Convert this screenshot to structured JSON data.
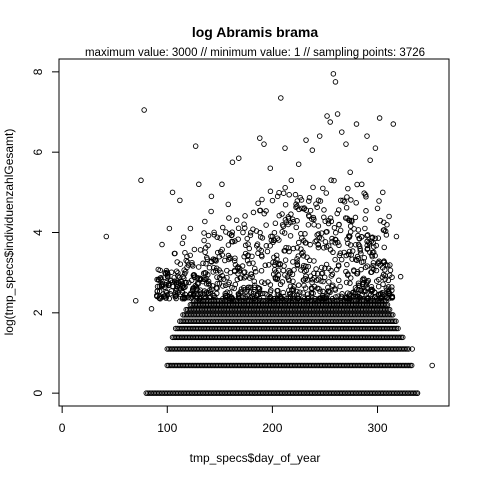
{
  "chart_data": {
    "type": "scatter",
    "title": "log Abramis brama",
    "subtitle": "maximum value: 3000  //  minimum value: 1  // sampling points: 3726",
    "xlabel": "tmp_specs$day_of_year",
    "ylabel": "log(tmp_specs$individuenzahlGesamt)",
    "xlim": [
      -3,
      368
    ],
    "ylim": [
      -0.32,
      8.32
    ],
    "xticks": [
      0,
      100,
      200,
      300
    ],
    "xtick_labels": [
      "0",
      "100",
      "200",
      "300"
    ],
    "yticks": [
      0,
      2,
      4,
      6,
      8
    ],
    "ytick_labels": [
      "0",
      "2",
      "4",
      "6",
      "8"
    ],
    "grid": false,
    "legend": "none",
    "point_style": "open-circle",
    "baseline_rows": [
      {
        "y": 0,
        "x_from": 80,
        "x_to": 338
      },
      {
        "y": 0.69,
        "x_from": 100,
        "x_to": 333
      },
      {
        "y": 1.1,
        "x_from": 100,
        "x_to": 330
      },
      {
        "y": 1.39,
        "x_from": 105,
        "x_to": 325
      },
      {
        "y": 1.61,
        "x_from": 108,
        "x_to": 320
      },
      {
        "y": 1.79,
        "x_from": 112,
        "x_to": 318
      },
      {
        "y": 1.95,
        "x_from": 115,
        "x_to": 315
      },
      {
        "y": 2.08,
        "x_from": 118,
        "x_to": 312
      },
      {
        "y": 2.2,
        "x_from": 122,
        "x_to": 310
      },
      {
        "y": 2.3,
        "x_from": 125,
        "x_to": 308
      }
    ],
    "points": [
      {
        "x": 42,
        "y": 3.9
      },
      {
        "x": 70,
        "y": 2.3
      },
      {
        "x": 75,
        "y": 5.3
      },
      {
        "x": 78,
        "y": 7.05
      },
      {
        "x": 85,
        "y": 2.1
      },
      {
        "x": 95,
        "y": 3.7
      },
      {
        "x": 102,
        "y": 4.1
      },
      {
        "x": 105,
        "y": 5.0
      },
      {
        "x": 110,
        "y": 2.5
      },
      {
        "x": 112,
        "y": 4.8
      },
      {
        "x": 118,
        "y": 3.3
      },
      {
        "x": 122,
        "y": 4.1
      },
      {
        "x": 127,
        "y": 6.15
      },
      {
        "x": 130,
        "y": 5.2
      },
      {
        "x": 135,
        "y": 3.8
      },
      {
        "x": 142,
        "y": 4.9
      },
      {
        "x": 148,
        "y": 3.5
      },
      {
        "x": 152,
        "y": 5.2
      },
      {
        "x": 158,
        "y": 4.7
      },
      {
        "x": 162,
        "y": 5.75
      },
      {
        "x": 168,
        "y": 5.85
      },
      {
        "x": 172,
        "y": 4.0
      },
      {
        "x": 178,
        "y": 3.6
      },
      {
        "x": 182,
        "y": 4.5
      },
      {
        "x": 188,
        "y": 6.35
      },
      {
        "x": 192,
        "y": 6.2
      },
      {
        "x": 198,
        "y": 5.6
      },
      {
        "x": 205,
        "y": 4.9
      },
      {
        "x": 208,
        "y": 7.35
      },
      {
        "x": 212,
        "y": 6.1
      },
      {
        "x": 218,
        "y": 5.3
      },
      {
        "x": 225,
        "y": 5.7
      },
      {
        "x": 232,
        "y": 6.3
      },
      {
        "x": 238,
        "y": 6.05
      },
      {
        "x": 245,
        "y": 6.4
      },
      {
        "x": 252,
        "y": 6.9
      },
      {
        "x": 255,
        "y": 6.75
      },
      {
        "x": 258,
        "y": 7.95
      },
      {
        "x": 260,
        "y": 7.75
      },
      {
        "x": 262,
        "y": 6.95
      },
      {
        "x": 266,
        "y": 6.5
      },
      {
        "x": 270,
        "y": 6.2
      },
      {
        "x": 274,
        "y": 5.5
      },
      {
        "x": 280,
        "y": 6.7
      },
      {
        "x": 285,
        "y": 5.2
      },
      {
        "x": 290,
        "y": 6.4
      },
      {
        "x": 293,
        "y": 5.8
      },
      {
        "x": 298,
        "y": 6.1
      },
      {
        "x": 302,
        "y": 6.85
      },
      {
        "x": 305,
        "y": 5.0
      },
      {
        "x": 311,
        "y": 4.4
      },
      {
        "x": 315,
        "y": 6.7
      },
      {
        "x": 318,
        "y": 3.9
      },
      {
        "x": 322,
        "y": 2.9
      },
      {
        "x": 333,
        "y": 1.1
      },
      {
        "x": 338,
        "y": 0.0
      },
      {
        "x": 352,
        "y": 0.69
      },
      {
        "x": 115,
        "y": 2.9
      },
      {
        "x": 140,
        "y": 2.7
      },
      {
        "x": 160,
        "y": 3.0
      },
      {
        "x": 175,
        "y": 2.9
      },
      {
        "x": 190,
        "y": 3.4
      },
      {
        "x": 200,
        "y": 3.9
      },
      {
        "x": 215,
        "y": 4.2
      },
      {
        "x": 220,
        "y": 3.6
      },
      {
        "x": 228,
        "y": 4.6
      },
      {
        "x": 235,
        "y": 4.4
      },
      {
        "x": 242,
        "y": 3.8
      },
      {
        "x": 248,
        "y": 5.1
      },
      {
        "x": 265,
        "y": 4.8
      },
      {
        "x": 275,
        "y": 4.3
      },
      {
        "x": 282,
        "y": 3.7
      },
      {
        "x": 288,
        "y": 4.1
      },
      {
        "x": 295,
        "y": 3.4
      },
      {
        "x": 300,
        "y": 4.6
      },
      {
        "x": 308,
        "y": 3.2
      }
    ]
  }
}
